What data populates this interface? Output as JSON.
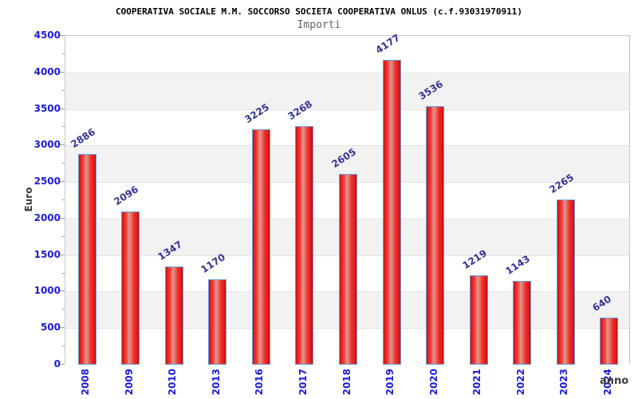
{
  "header": {
    "title": "COOPERATIVA SOCIALE M.M. SOCCORSO SOCIETA COOPERATIVA ONLUS (c.f.93031970911)",
    "subtitle": "Importi"
  },
  "chart_data": {
    "type": "bar",
    "title": "COOPERATIVA SOCIALE M.M. SOCCORSO SOCIETA COOPERATIVA ONLUS (c.f.93031970911)",
    "subtitle": "Importi",
    "xlabel": "anno",
    "ylabel": "Euro",
    "categories": [
      "2008",
      "2009",
      "2010",
      "2013",
      "2016",
      "2017",
      "2018",
      "2019",
      "2020",
      "2021",
      "2022",
      "2023",
      "2024"
    ],
    "values": [
      2886,
      2096,
      1347,
      1170,
      3225,
      3268,
      2605,
      4177,
      3536,
      1219,
      1143,
      2265,
      640
    ],
    "ylim": [
      0,
      4500
    ],
    "ytick_step": 500,
    "ytick_minor_step": 250,
    "grid": true,
    "band_striping": true,
    "bar_value_labels": true,
    "legend": "none"
  },
  "colors": {
    "tick_label": "#1c1cd8",
    "bar_value_label": "#333399",
    "bar_border": "#64a0dc",
    "bar_red": "#ee2020",
    "band_alt": "#f2f2f2",
    "gridline": "#e3e3e3",
    "plot_border": "#c8c8c8",
    "title": "#000000",
    "subtitle": "#646464",
    "axis_title": "#3c3c3c"
  }
}
